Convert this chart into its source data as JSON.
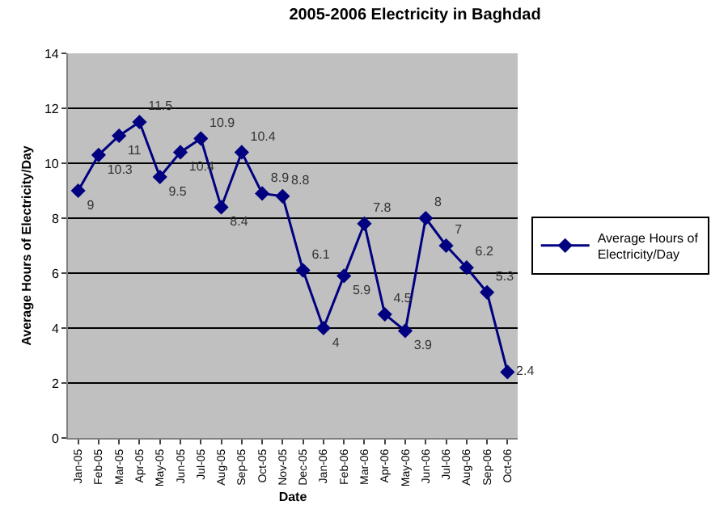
{
  "chart_data": {
    "type": "line",
    "title": "2005-2006 Electricity in Baghdad",
    "xlabel": "Date",
    "ylabel": "Average Hours of Electricity/Day",
    "categories": [
      "Jan-05",
      "Feb-05",
      "Mar-05",
      "Apr-05",
      "May-05",
      "Jun-05",
      "Jul-05",
      "Aug-05",
      "Sep-05",
      "Oct-05",
      "Nov-05",
      "Dec-05",
      "Jan-06",
      "Feb-06",
      "Mar-06",
      "Apr-06",
      "May-06",
      "Jun-06",
      "Jul-06",
      "Aug-06",
      "Sep-06",
      "Oct-06"
    ],
    "series": [
      {
        "name": "Average Hours of Electricity/Day",
        "color": "#000080",
        "values": [
          9,
          10.3,
          11,
          11.5,
          9.5,
          10.4,
          10.9,
          8.4,
          10.4,
          8.9,
          8.8,
          6.1,
          4,
          5.9,
          7.8,
          4.5,
          3.9,
          8,
          7,
          6.2,
          5.3,
          2.4
        ]
      }
    ],
    "ylim": [
      0,
      14
    ],
    "yticks": [
      0,
      2,
      4,
      6,
      8,
      10,
      12,
      14
    ],
    "grid": "y",
    "legend": "right",
    "marker": "diamond",
    "line_style": "solid",
    "data_labels": true
  }
}
